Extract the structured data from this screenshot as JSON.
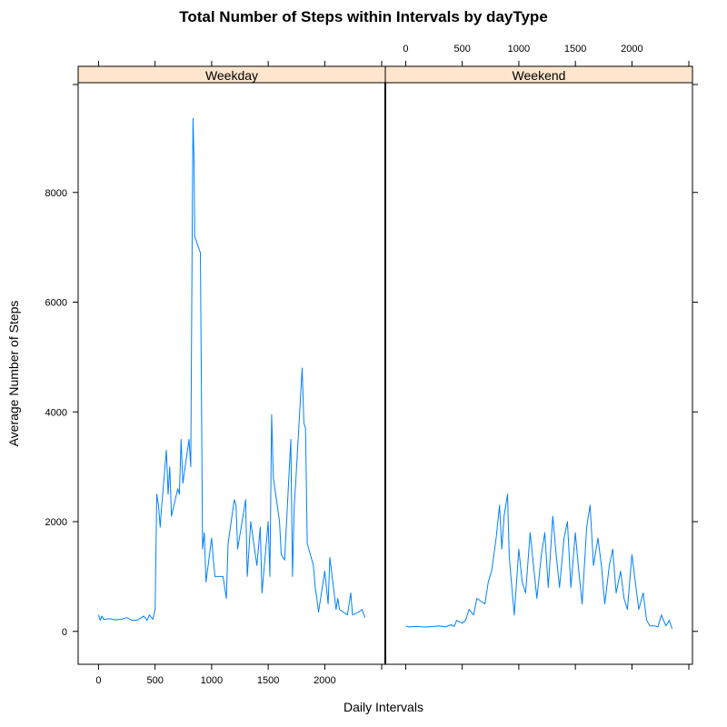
{
  "chart_data": {
    "type": "line",
    "title": "Total Number of Steps within Intervals by dayType",
    "xlabel": "Daily Intervals",
    "ylabel": "Average Number of Steps",
    "xlim": [
      -180,
      2535
    ],
    "ylim": [
      -600,
      10000
    ],
    "x_ticks": [
      0,
      500,
      1000,
      1500,
      2000
    ],
    "y_ticks": [
      0,
      2000,
      4000,
      6000,
      8000
    ],
    "line_color": "#0080ff",
    "strip_color": "#ffe5cc",
    "panels": [
      {
        "name": "Weekday",
        "x": [
          0,
          15,
          30,
          45,
          100,
          150,
          200,
          250,
          300,
          350,
          400,
          430,
          450,
          480,
          500,
          515,
          530,
          545,
          555,
          600,
          615,
          630,
          645,
          700,
          715,
          730,
          745,
          800,
          815,
          830,
          835,
          845,
          850,
          900,
          910,
          920,
          935,
          950,
          1000,
          1015,
          1030,
          1100,
          1130,
          1145,
          1200,
          1215,
          1230,
          1300,
          1315,
          1345,
          1400,
          1430,
          1445,
          1500,
          1515,
          1530,
          1545,
          1600,
          1615,
          1645,
          1700,
          1715,
          1730,
          1745,
          1800,
          1815,
          1830,
          1845,
          1900,
          1915,
          1930,
          1945,
          2000,
          2030,
          2045,
          2100,
          2115,
          2130,
          2200,
          2230,
          2245,
          2300,
          2330,
          2355
        ],
        "y": [
          300,
          200,
          280,
          220,
          230,
          210,
          220,
          250,
          200,
          210,
          280,
          200,
          300,
          220,
          400,
          2500,
          2300,
          1900,
          2200,
          3300,
          2500,
          3000,
          2100,
          2600,
          2500,
          3500,
          2700,
          3500,
          3000,
          7800,
          9350,
          8500,
          7200,
          6900,
          4300,
          1500,
          1800,
          900,
          1700,
          1300,
          1000,
          1000,
          600,
          1600,
          2400,
          2300,
          1500,
          2400,
          1000,
          2000,
          1200,
          1900,
          700,
          2000,
          1000,
          3950,
          2800,
          2000,
          1400,
          1300,
          3500,
          1000,
          2300,
          2800,
          4800,
          3800,
          3700,
          1600,
          1200,
          800,
          600,
          350,
          1100,
          500,
          1350,
          400,
          600,
          400,
          300,
          700,
          300,
          350,
          400,
          250
        ]
      },
      {
        "name": "Weekend",
        "x": [
          0,
          30,
          100,
          150,
          200,
          250,
          300,
          350,
          400,
          430,
          450,
          500,
          530,
          560,
          600,
          630,
          700,
          730,
          760,
          800,
          830,
          850,
          870,
          900,
          915,
          930,
          960,
          1000,
          1030,
          1060,
          1100,
          1130,
          1160,
          1200,
          1230,
          1260,
          1300,
          1330,
          1360,
          1400,
          1430,
          1460,
          1500,
          1530,
          1560,
          1600,
          1630,
          1660,
          1700,
          1730,
          1760,
          1800,
          1830,
          1860,
          1900,
          1930,
          1960,
          2000,
          2030,
          2060,
          2100,
          2130,
          2160,
          2200,
          2230,
          2260,
          2300,
          2330,
          2355
        ],
        "y": [
          100,
          80,
          90,
          80,
          80,
          90,
          100,
          80,
          120,
          90,
          200,
          150,
          200,
          400,
          300,
          600,
          500,
          900,
          1100,
          1700,
          2300,
          1500,
          2100,
          2500,
          1400,
          1000,
          300,
          1500,
          900,
          700,
          1800,
          1200,
          600,
          1400,
          1800,
          800,
          2100,
          1400,
          800,
          1700,
          2000,
          800,
          1800,
          1100,
          500,
          1900,
          2300,
          1200,
          1700,
          1200,
          500,
          1200,
          1500,
          700,
          1100,
          600,
          400,
          1400,
          900,
          400,
          700,
          200,
          100,
          100,
          80,
          300,
          100,
          200,
          50
        ]
      }
    ]
  }
}
